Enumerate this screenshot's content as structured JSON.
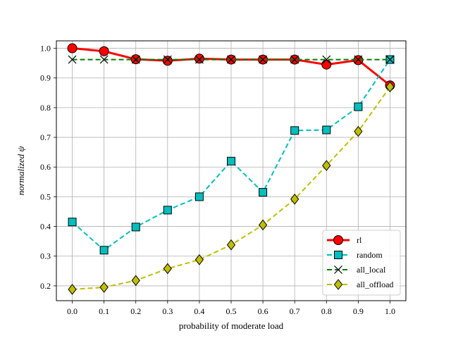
{
  "chart_data": {
    "type": "line",
    "title": "",
    "xlabel": "probability of moderate load",
    "ylabel": "normalized ψ",
    "x": [
      0.0,
      0.1,
      0.2,
      0.3,
      0.4,
      0.5,
      0.6,
      0.7,
      0.8,
      0.9,
      1.0
    ],
    "xticks": [
      "0.0",
      "0.1",
      "0.2",
      "0.3",
      "0.4",
      "0.5",
      "0.6",
      "0.7",
      "0.8",
      "0.9",
      "1.0"
    ],
    "yticks": [
      "0.2",
      "0.3",
      "0.4",
      "0.5",
      "0.6",
      "0.7",
      "0.8",
      "0.9",
      "1.0"
    ],
    "xlim": [
      -0.05,
      1.05
    ],
    "ylim": [
      0.15,
      1.025
    ],
    "grid": true,
    "legend_position": "lower-right",
    "series": [
      {
        "name": "rl",
        "values": [
          1.0,
          0.99,
          0.963,
          0.958,
          0.965,
          0.962,
          0.962,
          0.962,
          0.945,
          0.96,
          0.875
        ],
        "color": "#ff0000",
        "marker": "circle",
        "dash": "solid"
      },
      {
        "name": "random",
        "values": [
          0.415,
          0.32,
          0.398,
          0.455,
          0.5,
          0.62,
          0.515,
          0.723,
          0.725,
          0.803,
          0.962
        ],
        "color": "#00bfbf",
        "marker": "square",
        "dash": "dashed"
      },
      {
        "name": "all_local",
        "values": [
          0.962,
          0.962,
          0.962,
          0.962,
          0.962,
          0.962,
          0.962,
          0.962,
          0.962,
          0.962,
          0.962
        ],
        "color": "#008000",
        "marker": "x",
        "dash": "dashed"
      },
      {
        "name": "all_offload",
        "values": [
          0.188,
          0.195,
          0.218,
          0.258,
          0.288,
          0.338,
          0.405,
          0.492,
          0.605,
          0.72,
          0.87
        ],
        "color": "#bfbf00",
        "marker": "diamond",
        "dash": "dashed"
      }
    ]
  }
}
